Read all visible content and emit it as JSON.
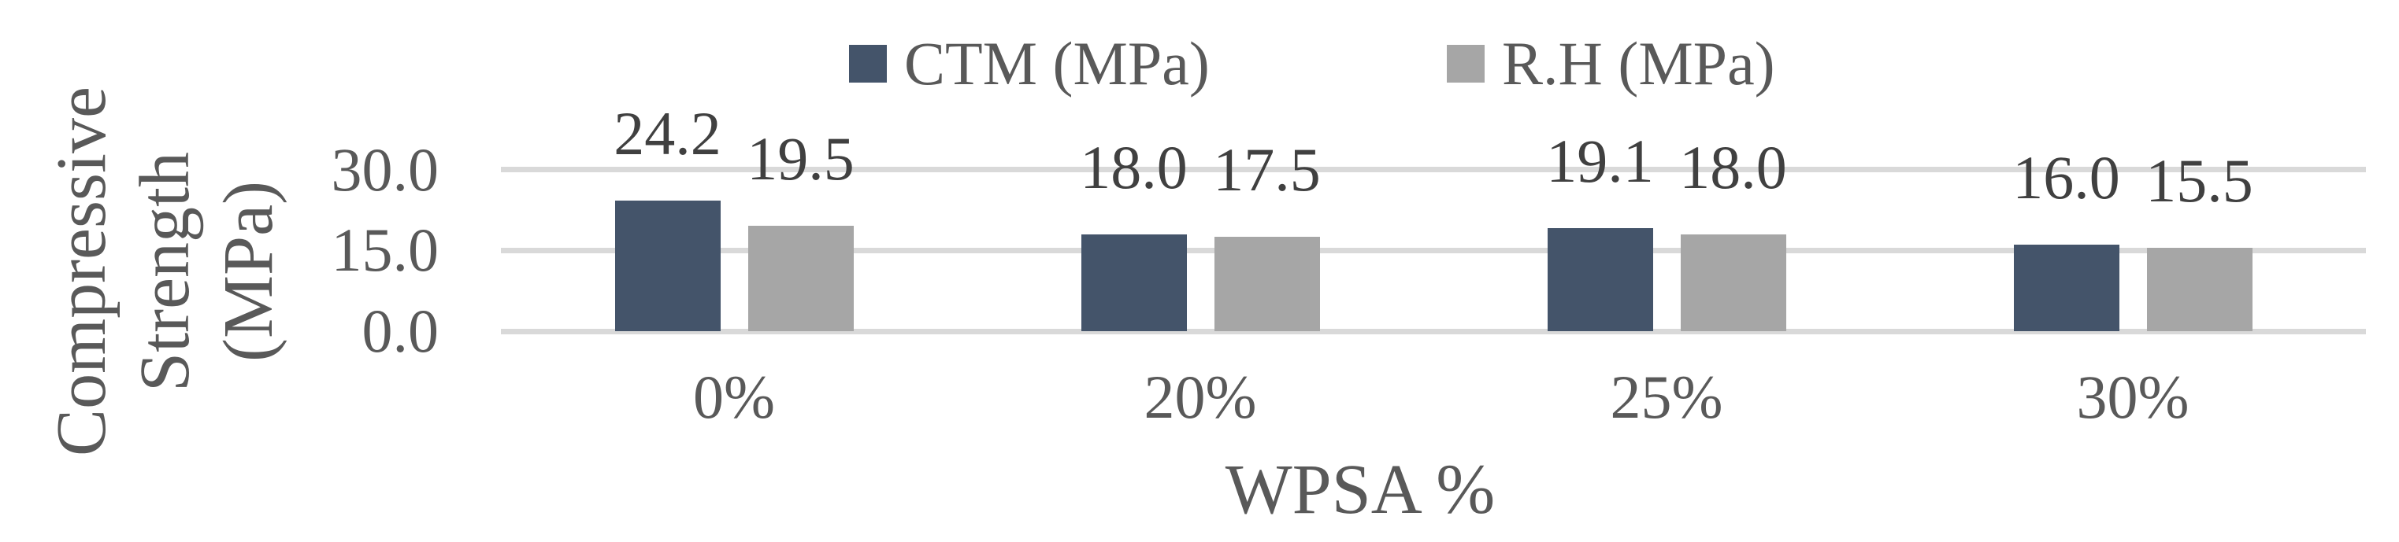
{
  "chart_data": {
    "type": "bar",
    "title": "",
    "categories": [
      "0%",
      "20%",
      "25%",
      "30%"
    ],
    "series": [
      {
        "name": "CTM (MPa)",
        "color": "#44546a",
        "values": [
          24.2,
          18.0,
          19.1,
          16.0
        ],
        "labels": [
          "24.2",
          "18.0",
          "19.1",
          "16.0"
        ]
      },
      {
        "name": "R.H (MPa)",
        "color": "#a6a6a6",
        "values": [
          19.5,
          17.5,
          18.0,
          15.5
        ],
        "labels": [
          "19.5",
          "17.5",
          "18.0",
          "15.5"
        ]
      }
    ],
    "xlabel": "WPSA %",
    "ylabel": "Compressive Strength (MPa)",
    "ylabel_lines": [
      "Compressive",
      "Strength",
      "(MPa)"
    ],
    "yticks": [
      {
        "value": 30,
        "label": "30.0"
      },
      {
        "value": 15,
        "label": "15.0"
      },
      {
        "value": 0,
        "label": "0.0"
      }
    ],
    "ylim": [
      0,
      30
    ],
    "grid": true,
    "legend_position": "top",
    "colors": {
      "gridline": "#d9d9d9",
      "axis_text": "#595959",
      "data_label": "#404040",
      "background": "#ffffff"
    }
  }
}
